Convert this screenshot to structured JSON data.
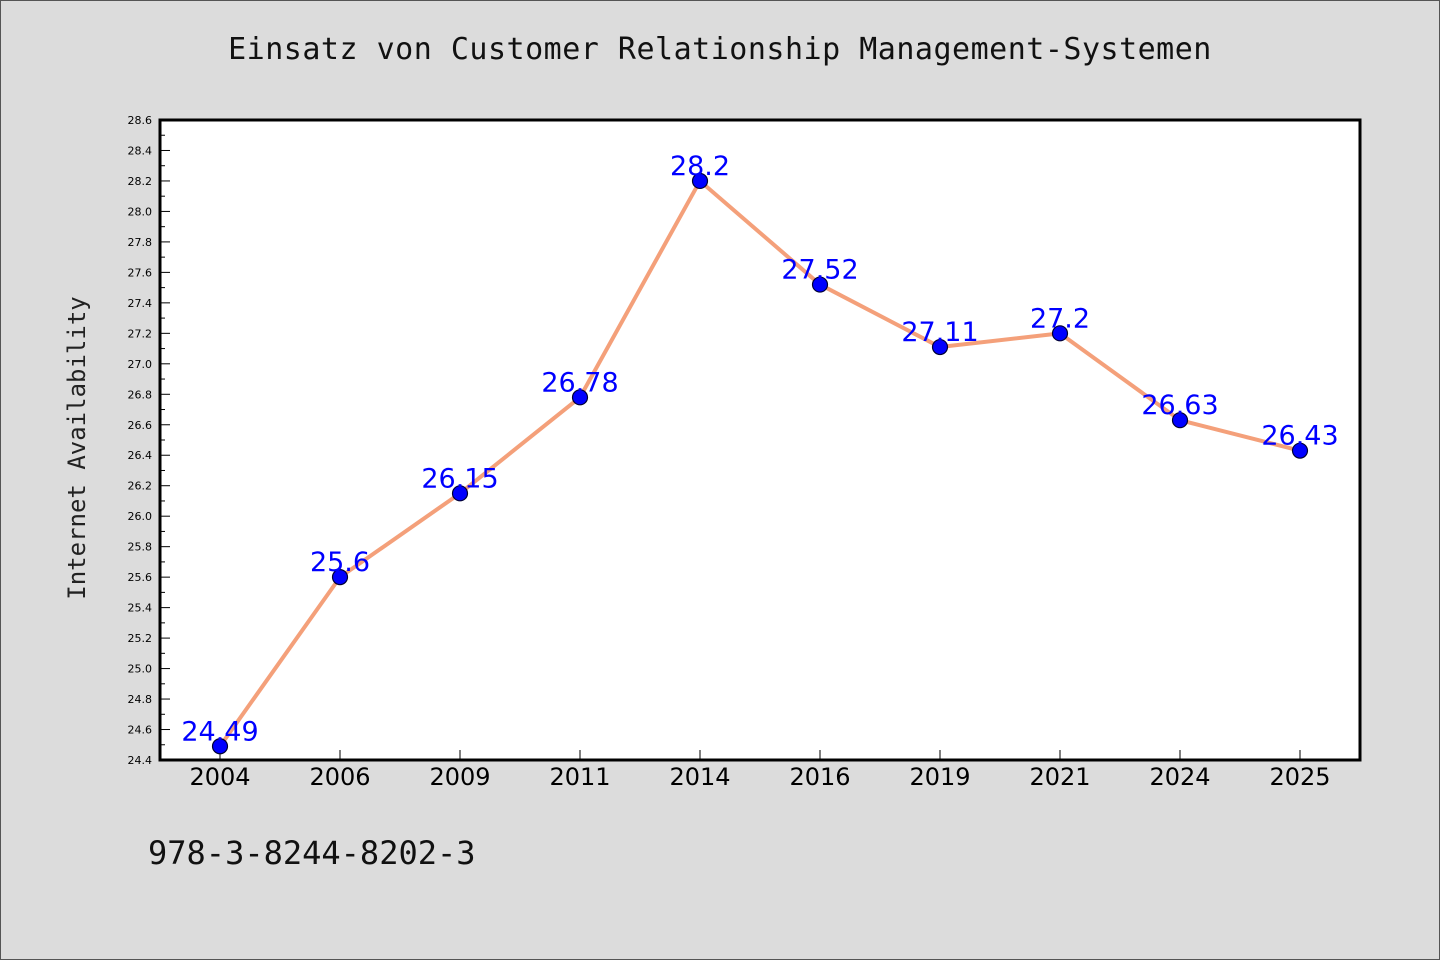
{
  "chart_data": {
    "type": "line",
    "title": "Einsatz von Customer Relationship Management-Systemen",
    "xlabel": "",
    "ylabel": "Internet Availability",
    "categories": [
      "2004",
      "2006",
      "2009",
      "2011",
      "2014",
      "2016",
      "2019",
      "2021",
      "2024",
      "2025"
    ],
    "series": [
      {
        "values": [
          24.49,
          25.6,
          26.15,
          26.78,
          28.2,
          27.52,
          27.11,
          27.2,
          26.63,
          26.43
        ],
        "labels": [
          "24.49",
          "25.6",
          "26.15",
          "26.78",
          "28.2",
          "27.52",
          "27.11",
          "27.2",
          "26.63",
          "26.43"
        ]
      }
    ],
    "ylim": [
      24.4,
      28.6
    ],
    "yticks": [
      "24.4",
      "24.6",
      "24.8",
      "25.0",
      "25.2",
      "25.4",
      "25.6",
      "25.8",
      "26.0",
      "26.2",
      "26.4",
      "26.6",
      "26.8",
      "27.0",
      "27.2",
      "27.4",
      "27.6",
      "27.8",
      "28.0",
      "28.2",
      "28.4",
      "28.6"
    ],
    "grid": false,
    "colors": {
      "line": "#f4a07a",
      "marker": "#0000ff",
      "marker_edge": "#000033",
      "data_label": "#0000ff",
      "plot_bg": "#ffffff",
      "page_bg": "#dcdcdc"
    }
  },
  "footer": {
    "isbn": "978-3-8244-8202-3"
  }
}
